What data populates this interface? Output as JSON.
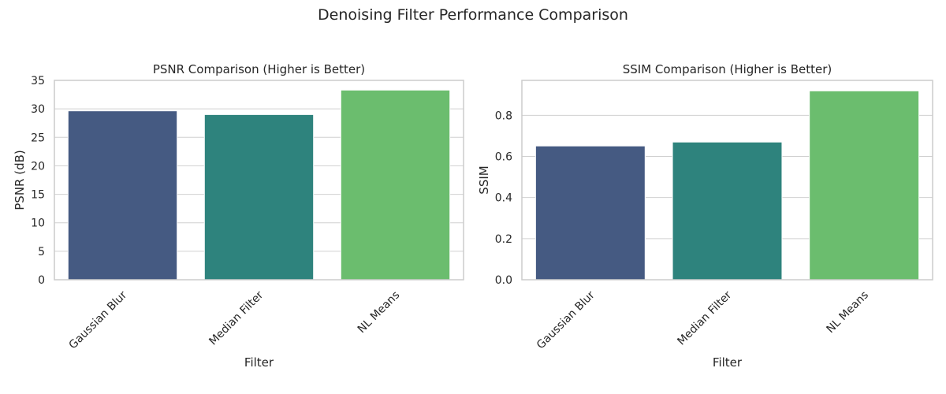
{
  "suptitle": "Denoising Filter Performance Comparison",
  "colors": [
    "#455a82",
    "#2e837d",
    "#6bbd6e"
  ],
  "chart_data": [
    {
      "type": "bar",
      "title": "PSNR Comparison (Higher is Better)",
      "xlabel": "Filter",
      "ylabel": "PSNR (dB)",
      "categories": [
        "Gaussian Blur",
        "Median Filter",
        "NL Means"
      ],
      "values": [
        29.65,
        29.0,
        33.3
      ],
      "ylim": [
        0,
        35
      ],
      "yticks": [
        0,
        5,
        10,
        15,
        20,
        25,
        30,
        35
      ],
      "ytick_labels": [
        "0",
        "5",
        "10",
        "15",
        "20",
        "25",
        "30",
        "35"
      ],
      "grid": true
    },
    {
      "type": "bar",
      "title": "SSIM Comparison (Higher is Better)",
      "xlabel": "Filter",
      "ylabel": "SSIM",
      "categories": [
        "Gaussian Blur",
        "Median Filter",
        "NL Means"
      ],
      "values": [
        0.651,
        0.67,
        0.919
      ],
      "ylim": [
        0,
        0.97
      ],
      "yticks": [
        0,
        0.2,
        0.4,
        0.6,
        0.8
      ],
      "ytick_labels": [
        "0.0",
        "0.2",
        "0.4",
        "0.6",
        "0.8"
      ],
      "grid": true
    }
  ]
}
